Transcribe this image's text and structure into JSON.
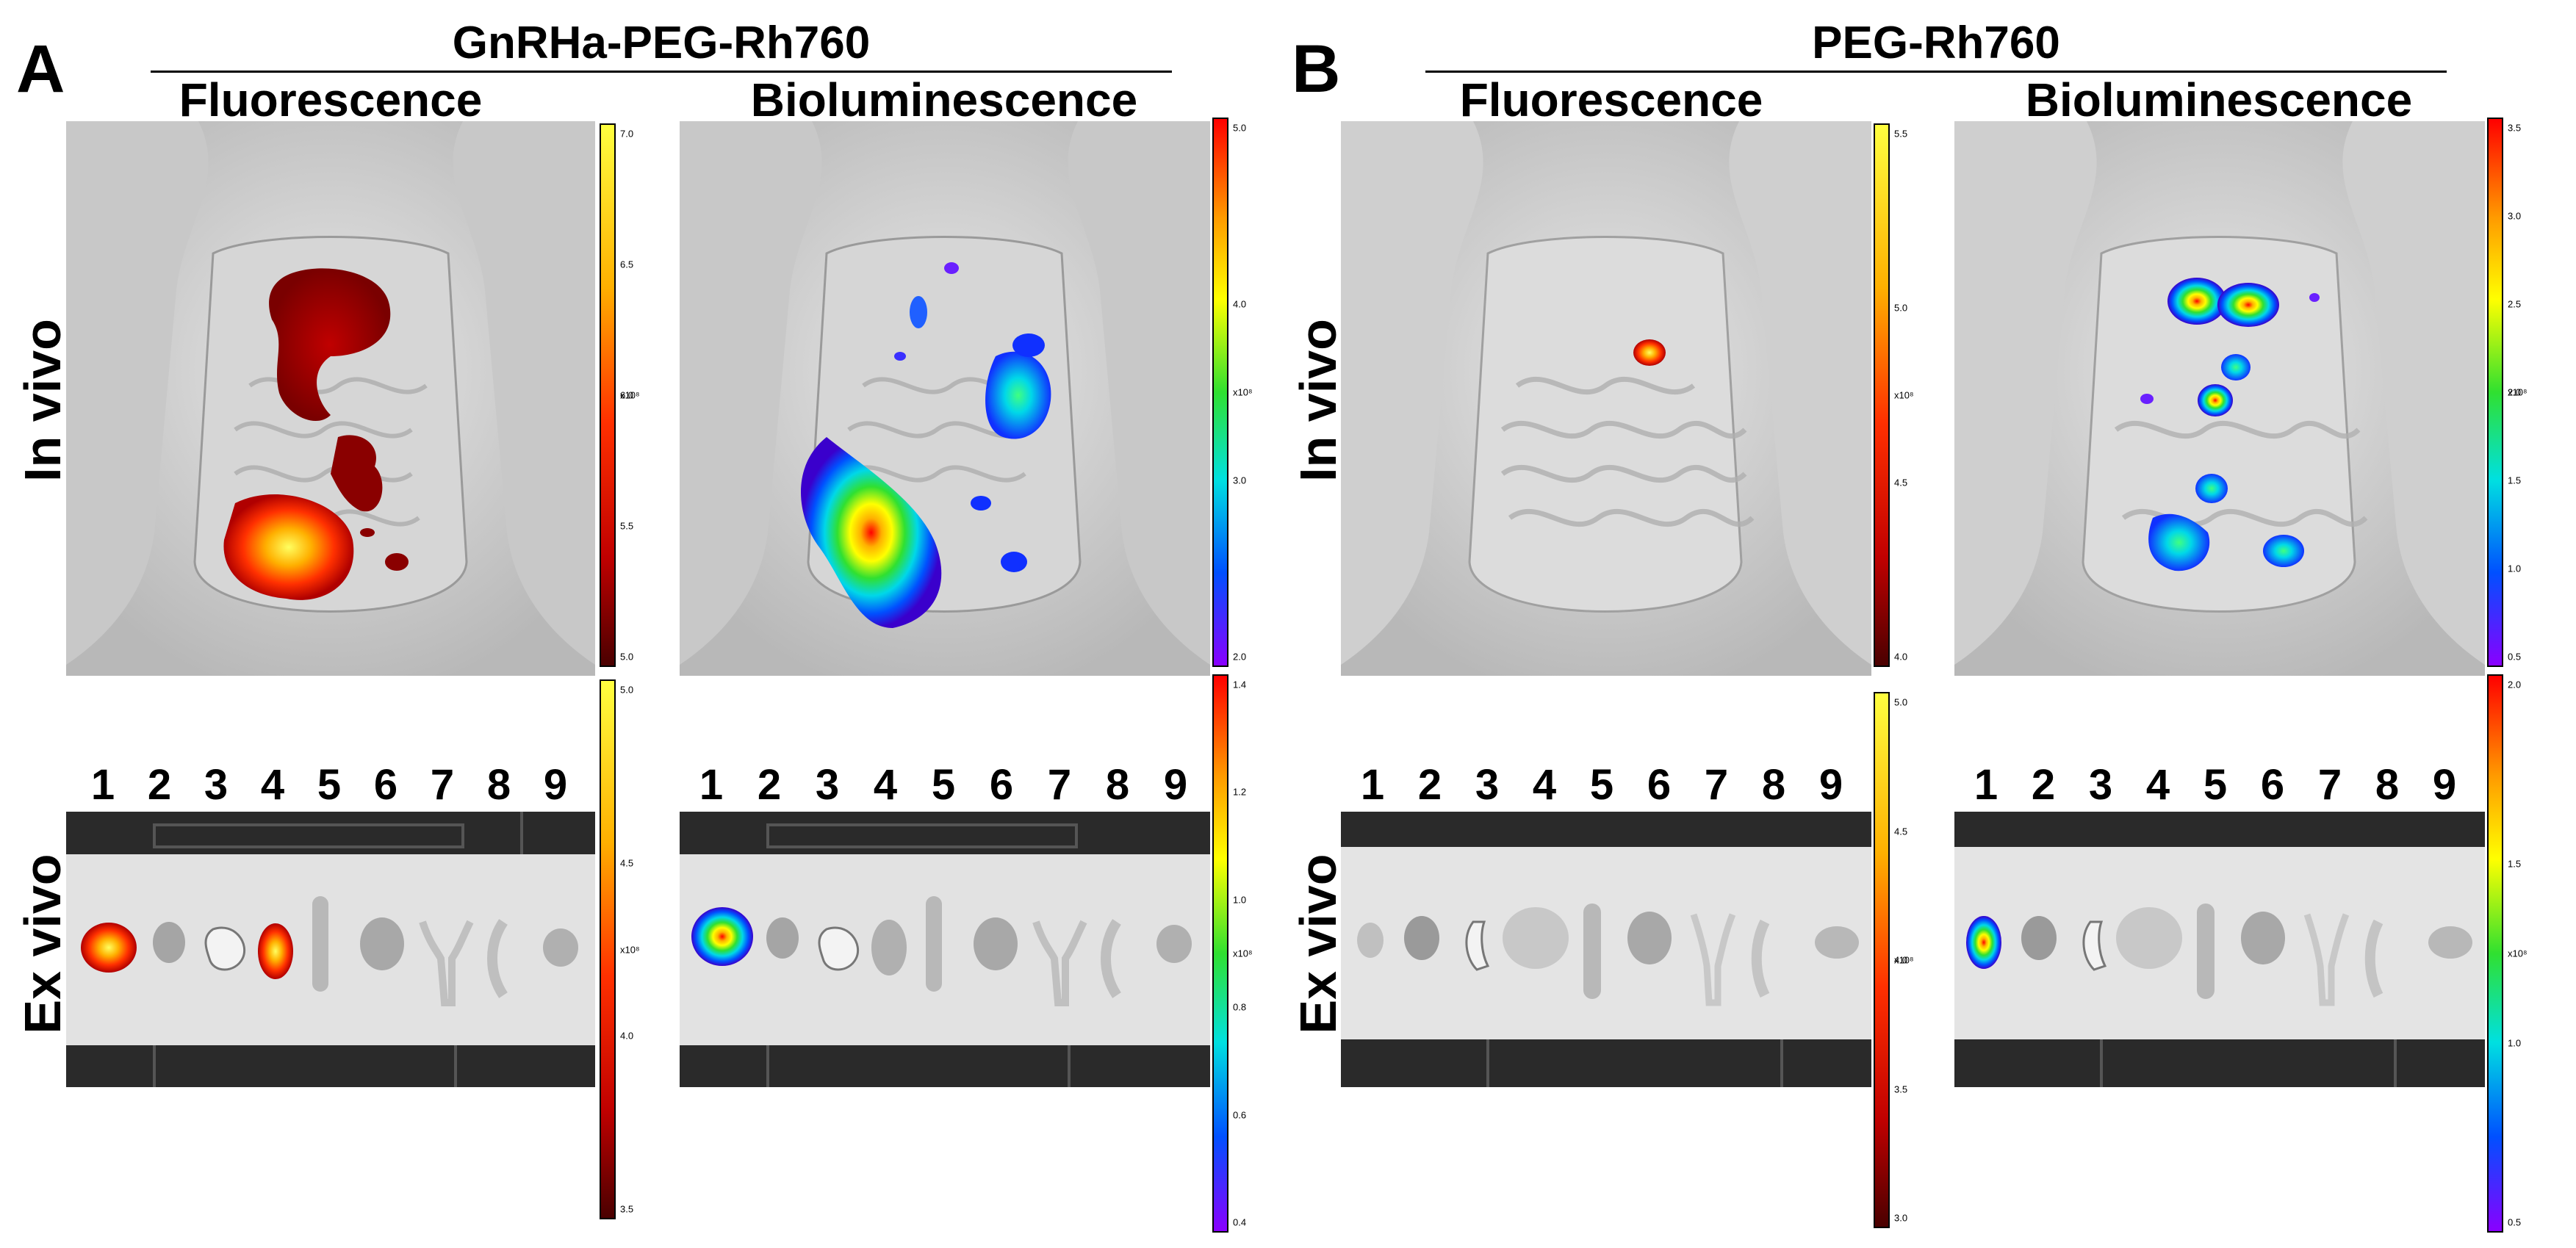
{
  "panels": [
    {
      "letter": "A",
      "title": "GnRHa-PEG-Rh760"
    },
    {
      "letter": "B",
      "title": "PEG-Rh760"
    }
  ],
  "column_titles": [
    "Fluorescence",
    "Bioluminescence",
    "Fluorescence",
    "Bioluminescence"
  ],
  "row_labels": [
    "In vivo",
    "Ex vivo"
  ],
  "organ_numbers": [
    "1",
    "2",
    "3",
    "4",
    "5",
    "6",
    "7",
    "8",
    "9"
  ],
  "scale_bars": [
    {
      "id": "A-invivo-fluor",
      "palette": "hot",
      "unit": "x10⁸",
      "ticks": [
        "7.0",
        "6.5",
        "6.0",
        "5.5",
        "5.0"
      ]
    },
    {
      "id": "A-invivo-biolum",
      "palette": "rainbow",
      "unit": "x10⁸",
      "ticks": [
        "5.0",
        "4.0",
        "3.0",
        "2.0"
      ]
    },
    {
      "id": "B-invivo-fluor",
      "palette": "hot",
      "unit": "x10⁸",
      "ticks": [
        "5.5",
        "5.0",
        "4.5",
        "4.0"
      ]
    },
    {
      "id": "B-invivo-biolum",
      "palette": "rainbow",
      "unit": "x10⁸",
      "ticks": [
        "3.5",
        "3.0",
        "2.5",
        "2.0",
        "1.5",
        "1.0",
        "0.5"
      ]
    },
    {
      "id": "A-exvivo-fluor",
      "palette": "hot",
      "unit": "x10⁸",
      "ticks": [
        "5.0",
        "4.5",
        "4.0",
        "3.5"
      ]
    },
    {
      "id": "A-exvivo-biolum",
      "palette": "rainbow",
      "unit": "x10⁸",
      "ticks": [
        "1.4",
        "1.2",
        "1.0",
        "0.8",
        "0.6",
        "0.4"
      ]
    },
    {
      "id": "B-exvivo-fluor",
      "palette": "hot",
      "unit": "x10⁸",
      "ticks": [
        "5.0",
        "4.5",
        "4.0",
        "3.5",
        "3.0"
      ]
    },
    {
      "id": "B-exvivo-biolum",
      "palette": "rainbow",
      "unit": "x10⁸",
      "ticks": [
        "2.0",
        "1.5",
        "1.0",
        "0.5"
      ]
    }
  ],
  "colors": {
    "hot": [
      "#ffff40",
      "#ffb000",
      "#ff4000",
      "#cc0000",
      "#5a0000"
    ],
    "rainbow": [
      "#ff0000",
      "#ff9a00",
      "#ffff00",
      "#30e030",
      "#00e0e0",
      "#0050ff",
      "#8a00ff"
    ],
    "tray": "#2a2a2a"
  }
}
